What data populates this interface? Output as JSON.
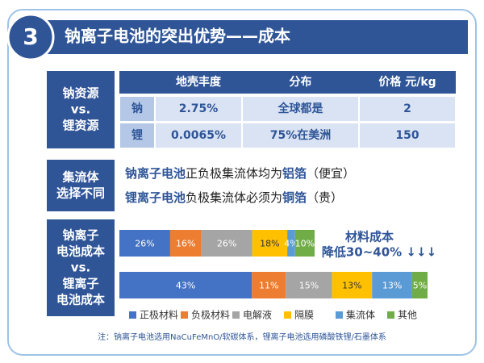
{
  "header": {
    "number": "3",
    "title": "钠离子电池的突出优势——成本"
  },
  "table": {
    "label": [
      "钠资源",
      "vs.",
      "锂资源"
    ],
    "columns": [
      "地壳丰度",
      "分布",
      "价格 元/kg"
    ],
    "rows": [
      [
        "钠",
        "2.75%",
        "全球都是",
        "2"
      ],
      [
        "锂",
        "0.0065%",
        "75%在美洲",
        "150"
      ]
    ]
  },
  "collector": {
    "label": [
      "集流体",
      "选择不同"
    ],
    "lines": [
      [
        "钠离子电池",
        "正负极集流体均为",
        "铝箔",
        "（便宜）"
      ],
      [
        "锂离子电池",
        "负极集流体必须为",
        "铜箔",
        "（贵）"
      ]
    ]
  },
  "chart_data": {
    "type": "stacked_bar",
    "label": [
      "钠离子",
      "电池成本",
      "vs.",
      "锂离子",
      "电池成本"
    ],
    "series": [
      {
        "name": "正极材料",
        "color": "#4472c4",
        "values": [
          26,
          43
        ],
        "value_labels": [
          "26%",
          "43%"
        ]
      },
      {
        "name": "负极材料",
        "color": "#ed7d31",
        "values": [
          16,
          11
        ],
        "value_labels": [
          "16%",
          "11%"
        ]
      },
      {
        "name": "电解液",
        "color": "#a5a5a5",
        "values": [
          26,
          15
        ],
        "value_labels": [
          "26%",
          "15%"
        ]
      },
      {
        "name": "隔膜",
        "color": "#ffc000",
        "values": [
          18,
          13
        ],
        "value_labels": [
          "18%",
          "13%"
        ]
      },
      {
        "name": "集流体",
        "color": "#5b9bd5",
        "values": [
          4,
          13
        ],
        "value_labels": [
          "4%",
          "13%"
        ]
      },
      {
        "name": "其他",
        "color": "#70ad47",
        "values": [
          10,
          5
        ],
        "value_labels": [
          "10%",
          "5%"
        ]
      }
    ],
    "annotation": [
      "材料成本",
      "降低30~40%  ↓↓↓"
    ]
  },
  "note": "注：钠离子电池选用NaCuFeMnO/软碳体系，锂离子电池选用磷酸铁锂/石墨体系"
}
